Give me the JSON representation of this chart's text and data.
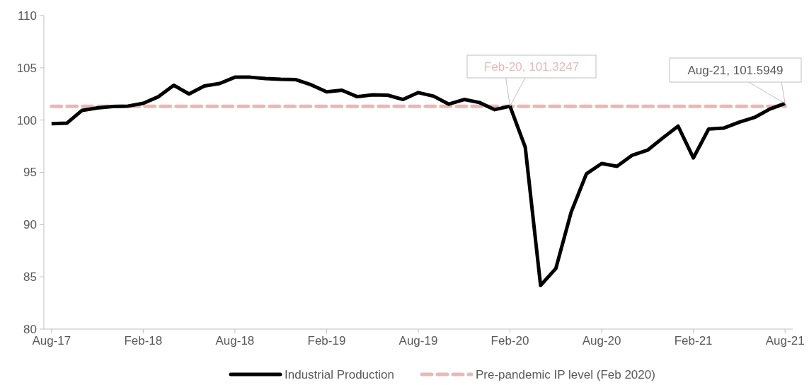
{
  "chart_data": {
    "type": "line",
    "categories": [
      "Aug-17",
      null,
      null,
      null,
      null,
      null,
      "Feb-18",
      null,
      null,
      null,
      null,
      null,
      "Aug-18",
      null,
      null,
      null,
      null,
      null,
      "Feb-19",
      null,
      null,
      null,
      null,
      null,
      "Aug-19",
      null,
      null,
      null,
      null,
      null,
      "Feb-20",
      null,
      null,
      null,
      null,
      null,
      "Aug-20",
      null,
      null,
      null,
      null,
      null,
      "Feb-21",
      null,
      null,
      null,
      null,
      null,
      "Aug-21"
    ],
    "series": [
      {
        "name": "Industrial Production",
        "color": "#000000",
        "line_style": "solid",
        "values": [
          99.65,
          99.7,
          100.93,
          101.16,
          101.3,
          101.34,
          101.6,
          102.24,
          103.33,
          102.5,
          103.26,
          103.5,
          104.1,
          104.1,
          103.98,
          103.9,
          103.87,
          103.37,
          102.7,
          102.86,
          102.24,
          102.42,
          102.38,
          101.97,
          102.63,
          102.29,
          101.52,
          101.97,
          101.68,
          101.0,
          101.32,
          97.39,
          84.18,
          85.8,
          91.18,
          94.86,
          95.85,
          95.58,
          96.64,
          97.12,
          98.29,
          99.42,
          96.38,
          99.15,
          99.24,
          99.8,
          100.25,
          101.05,
          101.59
        ]
      },
      {
        "name": "Pre-pandemic IP level (Feb 2020)",
        "color": "#e6b9b8",
        "line_style": "dashed",
        "values": [
          101.32,
          101.32,
          101.32,
          101.32,
          101.32,
          101.32,
          101.32,
          101.32,
          101.32,
          101.32,
          101.32,
          101.32,
          101.32,
          101.32,
          101.32,
          101.32,
          101.32,
          101.32,
          101.32,
          101.32,
          101.32,
          101.32,
          101.32,
          101.32,
          101.32,
          101.32,
          101.32,
          101.32,
          101.32,
          101.32,
          101.32,
          101.32,
          101.32,
          101.32,
          101.32,
          101.32,
          101.32,
          101.32,
          101.32,
          101.32,
          101.32,
          101.32,
          101.32,
          101.32,
          101.32,
          101.32,
          101.32,
          101.32,
          101.32
        ]
      }
    ],
    "annotations": [
      {
        "text": "Feb-20, 101.3247",
        "x": "Feb-20",
        "y": 101.32
      },
      {
        "text": "Aug-21, 101.5949",
        "x": "Aug-21",
        "y": 101.59
      }
    ],
    "ylim": [
      80,
      110
    ],
    "yticks": [
      80,
      85,
      90,
      95,
      100,
      105,
      110
    ],
    "grid": false,
    "legend": "bottom",
    "marker": "none"
  }
}
